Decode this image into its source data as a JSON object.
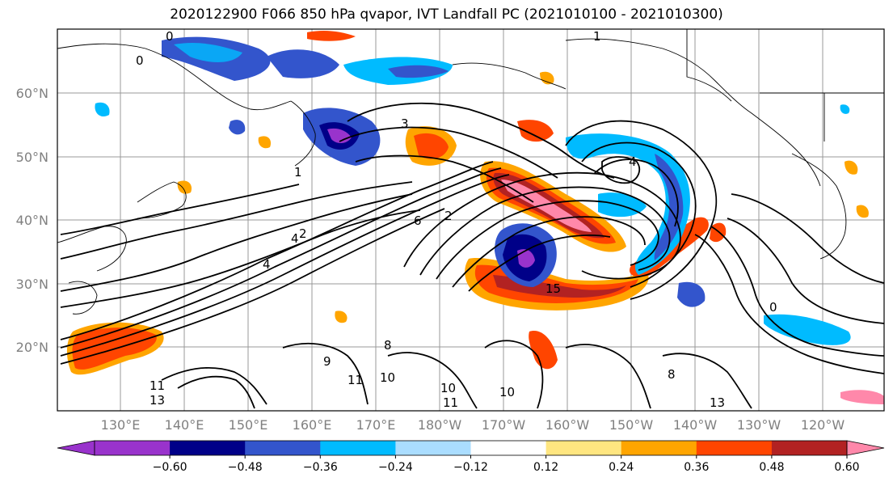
{
  "title": "2020122900 F066 850 hPa qvapor, IVT Landfall PC (2021010100 - 2021010300)",
  "map": {
    "lat_labels": [
      "60°N",
      "50°N",
      "40°N",
      "30°N",
      "20°N"
    ],
    "lon_labels": [
      "130°E",
      "140°E",
      "150°E",
      "160°E",
      "170°E",
      "180°W",
      "170°W",
      "160°W",
      "150°W",
      "140°W",
      "130°W",
      "120°W"
    ],
    "contour_labels": [
      "0",
      "0",
      "1",
      "3",
      "1",
      "2",
      "4",
      "2",
      "4",
      "6",
      "8",
      "9",
      "10",
      "11",
      "13",
      "11",
      "10",
      "10",
      "11",
      "8",
      "13",
      "15",
      "0",
      "4"
    ]
  },
  "colorbar": {
    "colors": [
      "#9933cc",
      "#000088",
      "#3355cc",
      "#00bbff",
      "#aaddff",
      "#ffffff",
      "#ffe680",
      "#ffa500",
      "#ff4500",
      "#b22222",
      "#ff88aa"
    ],
    "tick_labels": [
      "−0.60",
      "−0.48",
      "−0.36",
      "−0.24",
      "−0.12",
      "0.12",
      "0.24",
      "0.36",
      "0.48",
      "0.60"
    ]
  }
}
